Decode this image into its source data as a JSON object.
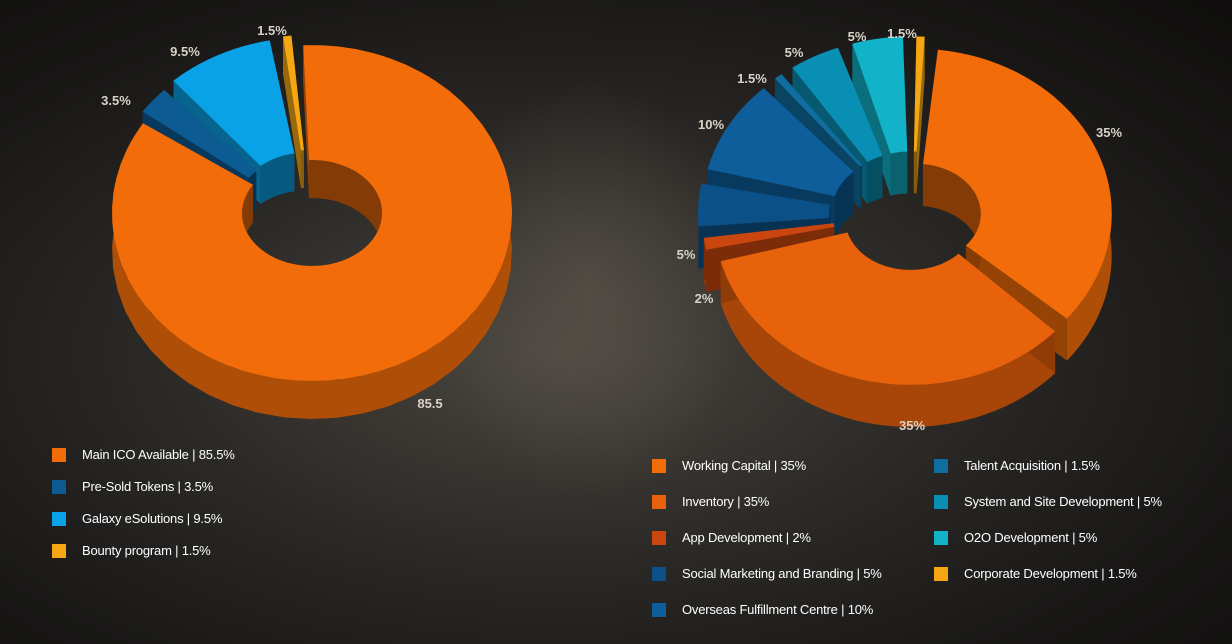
{
  "chart_data": [
    {
      "type": "pie",
      "donut": true,
      "slices": [
        {
          "label": "Main ICO Available",
          "value": 85.5,
          "color": "#f26c0a",
          "data_label": "85.5"
        },
        {
          "label": "Pre-Sold Tokens",
          "value": 3.5,
          "color": "#0d5b93",
          "data_label": "3.5%"
        },
        {
          "label": "Galaxy eSolutions",
          "value": 9.5,
          "color": "#0aa2e6",
          "data_label": "9.5%"
        },
        {
          "label": "Bounty program",
          "value": 1.5,
          "color": "#f5a713",
          "data_label": "1.5%"
        }
      ],
      "legend": [
        "Main ICO Available | 85.5%",
        "Pre-Sold Tokens | 3.5%",
        "Galaxy eSolutions | 9.5%",
        "Bounty program | 1.5%"
      ]
    },
    {
      "type": "pie",
      "donut": true,
      "slices": [
        {
          "label": "Working Capital",
          "value": 35,
          "color": "#f26c0a",
          "data_label": "35%"
        },
        {
          "label": "Inventory",
          "value": 35,
          "color": "#e8610b",
          "data_label": "35%"
        },
        {
          "label": "App Development",
          "value": 2,
          "color": "#c9470f",
          "data_label": "2%"
        },
        {
          "label": "Social Marketing and Branding",
          "value": 5,
          "color": "#0c5088",
          "data_label": "5%"
        },
        {
          "label": "Overseas Fulfillment Centre",
          "value": 10,
          "color": "#0d5e9b",
          "data_label": "10%"
        },
        {
          "label": "Talent Acquisition",
          "value": 1.5,
          "color": "#0f6e9f",
          "data_label": "1.5%"
        },
        {
          "label": "System and Site Development",
          "value": 5,
          "color": "#0a8fb4",
          "data_label": "5%"
        },
        {
          "label": "O2O Development",
          "value": 5,
          "color": "#12b2c8",
          "data_label": "5%"
        },
        {
          "label": "Corporate Development",
          "value": 1.5,
          "color": "#f5a713",
          "data_label": "1.5%"
        }
      ],
      "legend": [
        "Working Capital | 35%",
        "Inventory | 35%",
        "App Development | 2%",
        "Social Marketing and Branding | 5%",
        "Overseas Fulfillment Centre | 10%",
        "Talent Acquisition | 1.5%",
        "System and Site Development | 5%",
        "O2O Development | 5%",
        "Corporate Development | 1.5%"
      ]
    }
  ]
}
